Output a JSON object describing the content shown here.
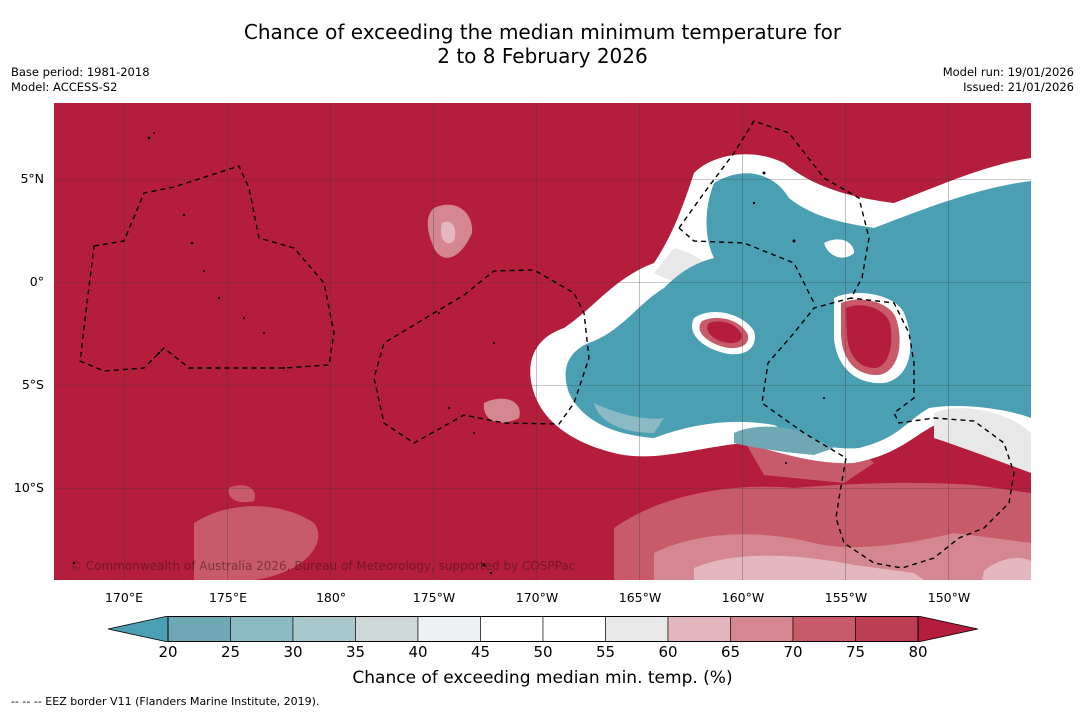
{
  "title": {
    "line1": "Chance of exceeding the median minimum temperature for",
    "line2": "2 to 8 February 2026"
  },
  "meta_left": {
    "base_period": "Base period: 1981-2018",
    "model": "Model: ACCESS-S2"
  },
  "meta_right": {
    "model_run": "Model run: 19/01/2026",
    "issued": "Issued: 21/01/2026"
  },
  "map": {
    "lat_labels": [
      "5°N",
      "0°",
      "5°S",
      "10°S"
    ],
    "lon_labels": [
      "170°E",
      "175°E",
      "180°",
      "175°W",
      "170°W",
      "165°W",
      "160°W",
      "155°W",
      "150°W"
    ],
    "copyright": "© Commonwealth of Australia 2026, Bureau of Meteorology, supported by COSPPac"
  },
  "colorbar": {
    "ticks": [
      "20",
      "25",
      "30",
      "35",
      "40",
      "45",
      "50",
      "55",
      "60",
      "65",
      "70",
      "75",
      "80"
    ],
    "colors": [
      "#6fa8b4",
      "#8bbac4",
      "#a9c8cc",
      "#cfd8d9",
      "#edf1f3",
      "#ffffff",
      "#ffffff",
      "#e8e8e8",
      "#e3b7bd",
      "#d48790",
      "#c85b6a",
      "#bb3e51"
    ],
    "under_color": "#4aa0b2",
    "over_color": "#b41d3b",
    "label": "Chance of exceeding median min. temp. (%)"
  },
  "footnote": "--  --  -- EEZ border V11 (Flanders Marine Institute, 2019).",
  "colors": {
    "high_red": "#b41d3b",
    "low_teal": "#4aa0b2",
    "mid_pink": "#d48790",
    "light_pink": "#e3b7bd"
  }
}
